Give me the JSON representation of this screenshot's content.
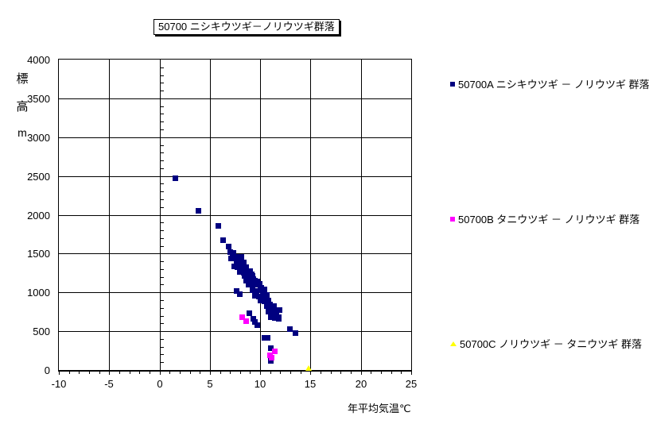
{
  "chart_data": {
    "type": "scatter",
    "title": "50700 ニシキウツギ－ノリウツギ群落",
    "xlabel": "年平均気温℃",
    "ylabel": "標高m",
    "ylabel_chars": [
      "標",
      "高",
      "m"
    ],
    "xlim": [
      -10,
      25
    ],
    "ylim": [
      0,
      4000
    ],
    "x_tick_step": 5,
    "y_tick_step": 500,
    "x_minor_step": 1,
    "y_minor_step": 100,
    "grid": true,
    "legend_position": "right",
    "background": "#ffffff",
    "grid_color": "#000000",
    "series": [
      {
        "name": "50700A ニシキウツギ － ノリウツギ 群落",
        "marker": "square",
        "color": "#000080",
        "points": [
          [
            1.5,
            2480
          ],
          [
            3.8,
            2060
          ],
          [
            5.8,
            1860
          ],
          [
            6.3,
            1680
          ],
          [
            6.8,
            1600
          ],
          [
            7.0,
            1520
          ],
          [
            7.3,
            1510
          ],
          [
            7.2,
            1470
          ],
          [
            7.5,
            1460
          ],
          [
            7.1,
            1440
          ],
          [
            7.8,
            1440
          ],
          [
            8.1,
            1460
          ],
          [
            7.6,
            1390
          ],
          [
            8.0,
            1385
          ],
          [
            8.3,
            1390
          ],
          [
            7.4,
            1340
          ],
          [
            7.7,
            1325
          ],
          [
            8.2,
            1330
          ],
          [
            8.6,
            1325
          ],
          [
            8.5,
            1300
          ],
          [
            7.9,
            1270
          ],
          [
            8.3,
            1260
          ],
          [
            8.7,
            1270
          ],
          [
            9.0,
            1280
          ],
          [
            8.4,
            1215
          ],
          [
            8.8,
            1215
          ],
          [
            9.2,
            1220
          ],
          [
            9.1,
            1240
          ],
          [
            8.6,
            1155
          ],
          [
            9.0,
            1145
          ],
          [
            9.4,
            1160
          ],
          [
            9.3,
            1180
          ],
          [
            9.7,
            1150
          ],
          [
            8.8,
            1100
          ],
          [
            9.2,
            1090
          ],
          [
            9.6,
            1100
          ],
          [
            9.9,
            1110
          ],
          [
            9.2,
            1035
          ],
          [
            9.6,
            1025
          ],
          [
            10.0,
            1035
          ],
          [
            10.4,
            1045
          ],
          [
            10.1,
            1060
          ],
          [
            9.4,
            965
          ],
          [
            9.8,
            955
          ],
          [
            10.2,
            965
          ],
          [
            10.6,
            975
          ],
          [
            10.3,
            1000
          ],
          [
            10.0,
            900
          ],
          [
            10.4,
            890
          ],
          [
            10.8,
            900
          ],
          [
            10.5,
            940
          ],
          [
            10.6,
            830
          ],
          [
            11.0,
            820
          ],
          [
            11.3,
            830
          ],
          [
            10.9,
            850
          ],
          [
            10.8,
            760
          ],
          [
            11.2,
            750
          ],
          [
            11.6,
            760
          ],
          [
            11.9,
            780
          ],
          [
            11.1,
            800
          ],
          [
            11.0,
            690
          ],
          [
            11.4,
            680
          ],
          [
            11.8,
            690
          ],
          [
            11.5,
            720
          ],
          [
            7.6,
            1020
          ],
          [
            7.9,
            980
          ],
          [
            8.9,
            740
          ],
          [
            9.3,
            670
          ],
          [
            9.4,
            625
          ],
          [
            9.7,
            585
          ],
          [
            11.8,
            660
          ],
          [
            10.4,
            415
          ],
          [
            10.7,
            420
          ],
          [
            12.9,
            535
          ],
          [
            13.5,
            480
          ],
          [
            11.0,
            290
          ],
          [
            11.0,
            120
          ]
        ]
      },
      {
        "name": "50700B タニウツギ － ノリウツギ 群落",
        "marker": "square",
        "color": "#FF00FF",
        "points": [
          [
            8.2,
            690
          ],
          [
            8.6,
            630
          ],
          [
            11.4,
            250
          ],
          [
            10.9,
            190
          ],
          [
            11.1,
            160
          ]
        ]
      },
      {
        "name": "50700C ノリウツギ － タニウツギ 群落",
        "marker": "triangle",
        "color": "#FFFF00",
        "points": [
          [
            14.8,
            20
          ]
        ]
      }
    ]
  }
}
